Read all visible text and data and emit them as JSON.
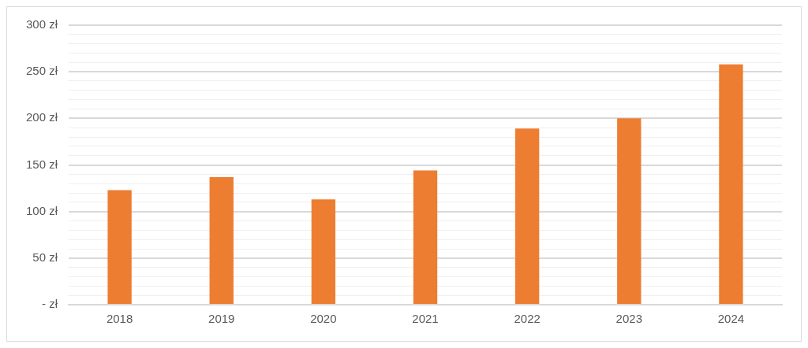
{
  "chart_data": {
    "type": "bar",
    "categories": [
      "2018",
      "2019",
      "2020",
      "2021",
      "2022",
      "2023",
      "2024"
    ],
    "values": [
      123,
      137,
      113,
      144,
      189,
      200,
      258
    ],
    "color": "#ed7d31",
    "ylim": [
      0,
      300
    ],
    "yticks": [
      {
        "value": 0,
        "label": "- zł"
      },
      {
        "value": 10,
        "label": null
      },
      {
        "value": 20,
        "label": null
      },
      {
        "value": 30,
        "label": null
      },
      {
        "value": 40,
        "label": null
      },
      {
        "value": 50,
        "label": "50 zł"
      },
      {
        "value": 60,
        "label": null
      },
      {
        "value": 70,
        "label": null
      },
      {
        "value": 80,
        "label": null
      },
      {
        "value": 90,
        "label": null
      },
      {
        "value": 100,
        "label": "100 zł"
      },
      {
        "value": 110,
        "label": null
      },
      {
        "value": 120,
        "label": null
      },
      {
        "value": 130,
        "label": null
      },
      {
        "value": 140,
        "label": null
      },
      {
        "value": 150,
        "label": "150 zł"
      },
      {
        "value": 160,
        "label": null
      },
      {
        "value": 170,
        "label": null
      },
      {
        "value": 180,
        "label": null
      },
      {
        "value": 190,
        "label": null
      },
      {
        "value": 200,
        "label": "200 zł"
      },
      {
        "value": 210,
        "label": null
      },
      {
        "value": 220,
        "label": null
      },
      {
        "value": 230,
        "label": null
      },
      {
        "value": 240,
        "label": null
      },
      {
        "value": 250,
        "label": "250 zł"
      },
      {
        "value": 260,
        "label": null
      },
      {
        "value": 270,
        "label": null
      },
      {
        "value": 280,
        "label": null
      },
      {
        "value": 290,
        "label": null
      },
      {
        "value": 300,
        "label": "300 zł"
      }
    ],
    "grid": "y",
    "legend": false
  }
}
